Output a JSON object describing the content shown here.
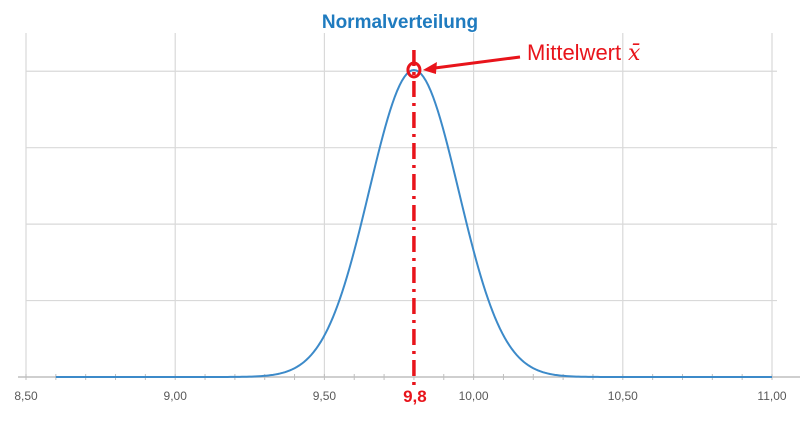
{
  "chart_data": {
    "type": "line",
    "title": "Normalverteilung",
    "xlabel": "",
    "ylabel": "",
    "xlim": [
      8.5,
      11.0
    ],
    "x_ticks": [
      8.5,
      9.0,
      9.5,
      10.0,
      10.5,
      11.0
    ],
    "x_tick_labels": [
      "8,50",
      "9,00",
      "9,50",
      "10,00",
      "10,50",
      "11,00"
    ],
    "y_gridlines": 5,
    "grid": true,
    "legend": "none",
    "series": [
      {
        "curve": "normal",
        "mean": 9.8,
        "std": 0.15,
        "x_range": [
          8.6,
          11.0
        ],
        "color": "#3c8ac9"
      }
    ],
    "annotations": {
      "mean_line_label": "9,8",
      "mean_value": 9.8,
      "mean_callout_text": "Mittelwert",
      "mean_callout_symbol": "x̄",
      "color": "#e8141b"
    }
  }
}
